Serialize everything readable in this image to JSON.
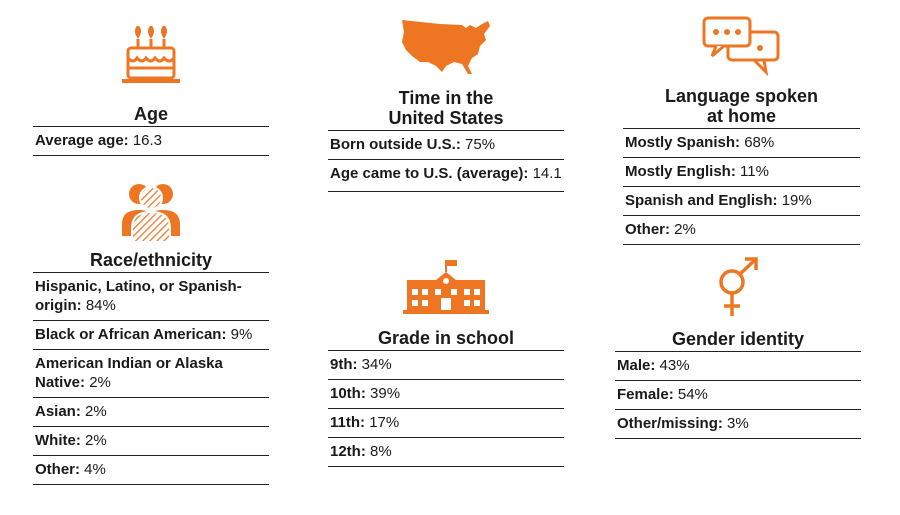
{
  "colors": {
    "accent": "#ee7623",
    "text": "#1a1a1a",
    "rule": "#222222"
  },
  "sections": {
    "age": {
      "icon": "birthday-cake-icon",
      "title": "Age",
      "rows": [
        {
          "label": "Average age:",
          "value": "16.3"
        }
      ]
    },
    "race": {
      "icon": "people-group-icon",
      "title": "Race/ethnicity",
      "rows": [
        {
          "label": "Hispanic, Latino, or Spanish-origin:",
          "value": "84%"
        },
        {
          "label": "Black or African American:",
          "value": "9%"
        },
        {
          "label": "American Indian or Alaska Native:",
          "value": "2%"
        },
        {
          "label": "Asian:",
          "value": "2%"
        },
        {
          "label": "White:",
          "value": "2%"
        },
        {
          "label": "Other:",
          "value": "4%"
        }
      ]
    },
    "time": {
      "icon": "us-map-icon",
      "title_line1": "Time in the",
      "title_line2": "United States",
      "rows": [
        {
          "label": "Born outside U.S.:",
          "value": "75%"
        },
        {
          "label": "Age came to U.S. (average):",
          "value": "14.1"
        }
      ]
    },
    "grade": {
      "icon": "school-building-icon",
      "title": "Grade in school",
      "rows": [
        {
          "label": "9th:",
          "value": "34%"
        },
        {
          "label": "10th:",
          "value": "39%"
        },
        {
          "label": "11th:",
          "value": "17%"
        },
        {
          "label": "12th:",
          "value": "8%"
        }
      ]
    },
    "language": {
      "icon": "speech-bubbles-icon",
      "title_line1": "Language spoken",
      "title_line2": "at home",
      "rows": [
        {
          "label": "Mostly Spanish:",
          "value": "68%"
        },
        {
          "label": "Mostly English:",
          "value": "11%"
        },
        {
          "label": "Spanish and English:",
          "value": "19%"
        },
        {
          "label": "Other:",
          "value": "2%"
        }
      ]
    },
    "gender": {
      "icon": "gender-symbol-icon",
      "title": "Gender identity",
      "rows": [
        {
          "label": "Male:",
          "value": "43%"
        },
        {
          "label": "Female:",
          "value": "54%"
        },
        {
          "label": "Other/missing:",
          "value": "3%"
        }
      ]
    }
  }
}
